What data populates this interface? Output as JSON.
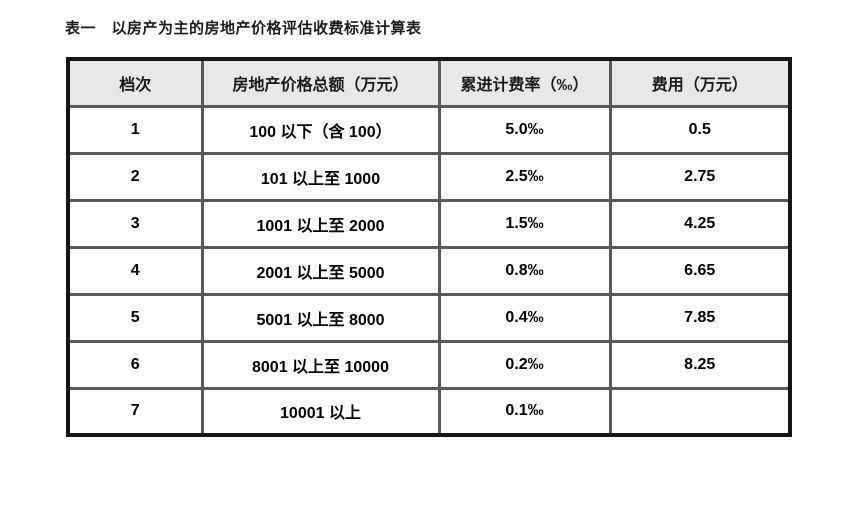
{
  "colors": {
    "header_bg": "#e8e8e8",
    "border_inner": "#595959",
    "border_outer": "#161616",
    "text_dark": "#1a1a1a",
    "text_body": "#000000",
    "page_bg": "#ffffff"
  },
  "title": "表一　以房产为主的房地产价格评估收费标准计算表",
  "table": {
    "headers": [
      "档次",
      "房地产价格总额（万元）",
      "累进计费率（‰）",
      "费用（万元）"
    ],
    "rows": [
      [
        "1",
        "100 以下（含 100）",
        "5.0‰",
        "0.5"
      ],
      [
        "2",
        "101 以上至 1000",
        "2.5‰",
        "2.75"
      ],
      [
        "3",
        "1001 以上至 2000",
        "1.5‰",
        "4.25"
      ],
      [
        "4",
        "2001 以上至 5000",
        "0.8‰",
        "6.65"
      ],
      [
        "5",
        "5001 以上至 8000",
        "0.4‰",
        "7.85"
      ],
      [
        "6",
        "8001 以上至 10000",
        "0.2‰",
        "8.25"
      ],
      [
        "7",
        "10001 以上",
        "0.1‰",
        ""
      ]
    ]
  }
}
